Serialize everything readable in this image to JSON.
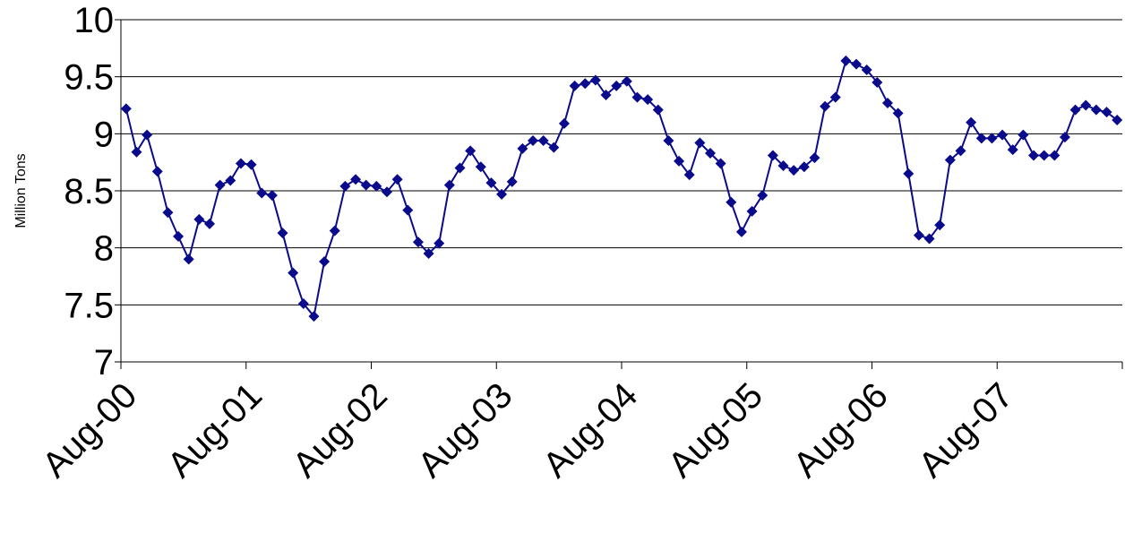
{
  "chart_data": {
    "type": "line",
    "y_label": "Million Tons",
    "color": "#0a0a8c",
    "marker": "diamond",
    "grid": true,
    "categories": [
      "Aug-00",
      null,
      null,
      null,
      null,
      null,
      null,
      null,
      null,
      null,
      null,
      null,
      "Aug-01",
      null,
      null,
      null,
      null,
      null,
      null,
      null,
      null,
      null,
      null,
      null,
      "Aug-02",
      null,
      null,
      null,
      null,
      null,
      null,
      null,
      null,
      null,
      null,
      null,
      "Aug-03",
      null,
      null,
      null,
      null,
      null,
      null,
      null,
      null,
      null,
      null,
      null,
      "Aug-04",
      null,
      null,
      null,
      null,
      null,
      null,
      null,
      null,
      null,
      null,
      null,
      "Aug-05",
      null,
      null,
      null,
      null,
      null,
      null,
      null,
      null,
      null,
      null,
      null,
      "Aug-06",
      null,
      null,
      null,
      null,
      null,
      null,
      null,
      null,
      null,
      null,
      null,
      "Aug-07",
      null,
      null,
      null,
      null,
      null,
      null,
      null,
      null,
      null,
      null,
      null
    ],
    "values": [
      9.22,
      8.84,
      8.99,
      8.67,
      8.31,
      8.1,
      7.9,
      8.25,
      8.21,
      8.55,
      8.59,
      8.74,
      8.73,
      8.48,
      8.46,
      8.13,
      7.78,
      7.51,
      7.4,
      7.88,
      8.15,
      8.54,
      8.6,
      8.55,
      8.54,
      8.49,
      8.6,
      8.33,
      8.05,
      7.95,
      8.04,
      8.55,
      8.7,
      8.85,
      8.71,
      8.57,
      8.47,
      8.58,
      8.87,
      8.94,
      8.94,
      8.88,
      9.09,
      9.42,
      9.44,
      9.47,
      9.34,
      9.42,
      9.46,
      9.32,
      9.3,
      9.21,
      8.94,
      8.76,
      8.64,
      8.92,
      8.83,
      8.74,
      8.4,
      8.14,
      8.32,
      8.46,
      8.81,
      8.72,
      8.68,
      8.71,
      8.79,
      9.24,
      9.32,
      9.64,
      9.61,
      9.56,
      9.45,
      9.27,
      9.18,
      8.65,
      8.11,
      8.08,
      8.2,
      8.77,
      8.85,
      9.1,
      8.96,
      8.96,
      8.99,
      8.86,
      8.99,
      8.81,
      8.81,
      8.81,
      8.97,
      9.21,
      9.25,
      9.21,
      9.19,
      9.12
    ],
    "ylim": [
      7,
      10
    ],
    "yticks": [
      7,
      7.5,
      8,
      8.5,
      9,
      9.5,
      10
    ]
  }
}
